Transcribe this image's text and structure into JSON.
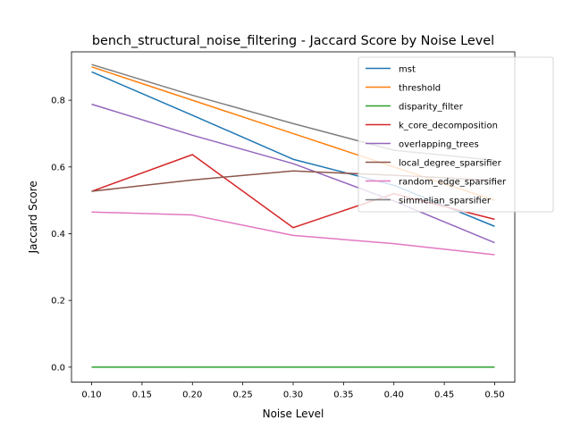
{
  "chart_data": {
    "type": "line",
    "title": "bench_structural_noise_filtering - Jaccard Score by Noise Level",
    "xlabel": "Noise Level",
    "ylabel": "Jaccard Score",
    "xlim": [
      0.08,
      0.52
    ],
    "ylim": [
      -0.045,
      0.945
    ],
    "xticks": [
      "0.10",
      "0.15",
      "0.20",
      "0.25",
      "0.30",
      "0.35",
      "0.40",
      "0.45",
      "0.50"
    ],
    "yticks": [
      "0.0",
      "0.2",
      "0.4",
      "0.6",
      "0.8"
    ],
    "grid": false,
    "legend_position": "top-right",
    "x": [
      0.1,
      0.2,
      0.3,
      0.4,
      0.5
    ],
    "series": [
      {
        "name": "mst",
        "color": "#1f77b4",
        "values": [
          0.885,
          0.755,
          0.623,
          0.545,
          0.422
        ]
      },
      {
        "name": "threshold",
        "color": "#ff7f0e",
        "values": [
          0.9,
          0.8,
          0.7,
          0.6,
          0.5
        ]
      },
      {
        "name": "disparity_filter",
        "color": "#2ca02c",
        "values": [
          0.0,
          0.0,
          0.0,
          0.0,
          0.0
        ]
      },
      {
        "name": "k_core_decomposition",
        "color": "#d62728",
        "values": [
          0.527,
          0.637,
          0.418,
          0.52,
          0.443
        ]
      },
      {
        "name": "overlapping_trees",
        "color": "#9467bd",
        "values": [
          0.788,
          0.695,
          0.61,
          0.498,
          0.373
        ]
      },
      {
        "name": "local_degree_sparsifier",
        "color": "#8c564b",
        "values": [
          0.527,
          0.561,
          0.588,
          0.575,
          0.56
        ]
      },
      {
        "name": "random_edge_sparsifier",
        "color": "#e377c2",
        "values": [
          0.465,
          0.456,
          0.395,
          0.37,
          0.337
        ]
      },
      {
        "name": "simmelian_sparsifier",
        "color": "#7f7f7f",
        "values": [
          0.907,
          0.815,
          0.73,
          0.65,
          0.62
        ]
      }
    ]
  }
}
